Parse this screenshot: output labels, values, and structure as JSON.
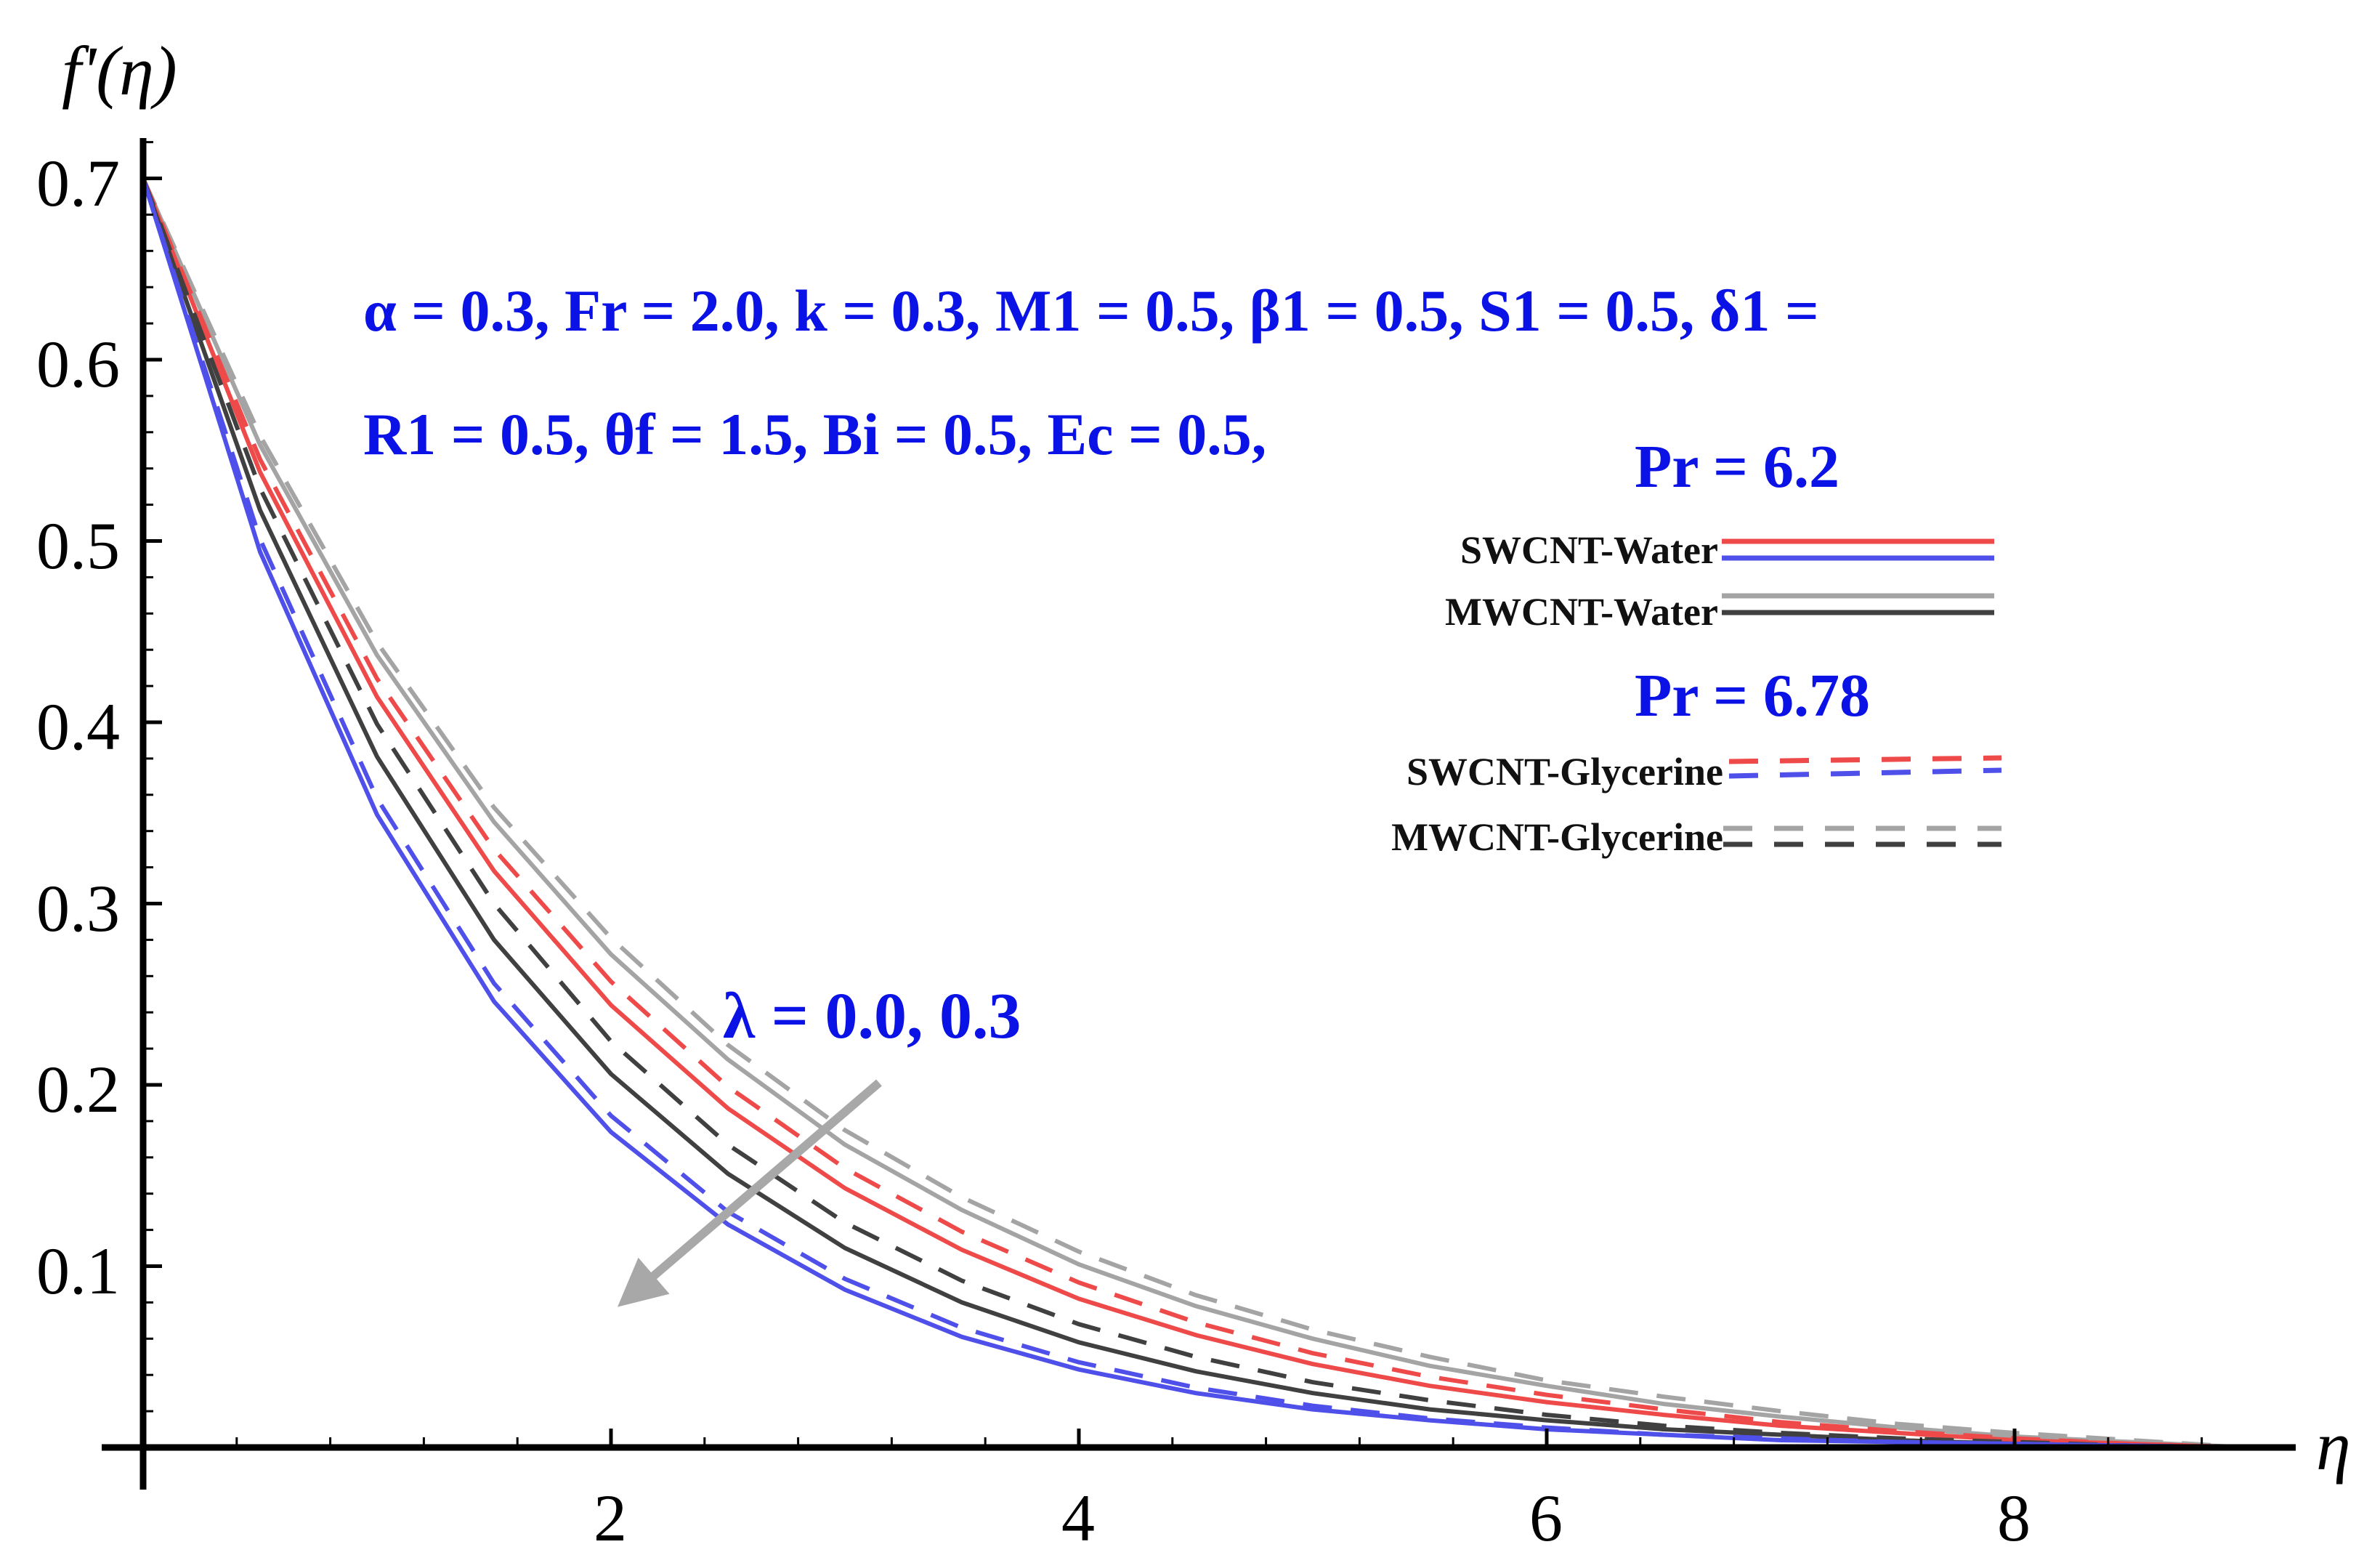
{
  "chart_data": {
    "type": "line",
    "title": "",
    "xlabel": "η",
    "ylabel": "f'(η)",
    "xlim": [
      0,
      9
    ],
    "ylim": [
      0,
      0.72
    ],
    "x_ticks": [
      "2",
      "4",
      "6",
      "8"
    ],
    "y_ticks": [
      "0.1",
      "0.2",
      "0.3",
      "0.4",
      "0.5",
      "0.6",
      "0.7"
    ],
    "parameter_text": [
      "α = 0.3, Fr = 2.0, k = 0.3, M1 = 0.5, β1 = 0.5, S1 = 0.5, δ1 =",
      "R1 = 0.5, θf = 1.5, Bi = 0.5, Ec = 0.5,"
    ],
    "legend_groups": [
      {
        "heading": "Pr = 6.2",
        "entries": [
          {
            "label": "SWCNT-Water",
            "colors": [
              "#ef4a4a",
              "#4f4fea"
            ],
            "dash": "solid"
          },
          {
            "label": "MWCNT-Water",
            "colors": [
              "#a4a4a4",
              "#404040"
            ],
            "dash": "solid"
          }
        ]
      },
      {
        "heading": "Pr = 6.78",
        "entries": [
          {
            "label": "SWCNT-Glycerine",
            "colors": [
              "#ef4a4a",
              "#4f4fea"
            ],
            "dash": "dashed"
          },
          {
            "label": "MWCNT-Glycerine",
            "colors": [
              "#a4a4a4",
              "#404040"
            ],
            "dash": "dashed"
          }
        ]
      }
    ],
    "annotation": "λ =  0.0, 0.3",
    "series": [
      {
        "name": "MWCNT-Glycerine (λ = 0.0)",
        "color": "#a4a4a4",
        "dash": "dashed",
        "x": [
          0,
          0.5,
          1,
          1.5,
          2,
          2.5,
          3,
          3.5,
          4,
          4.5,
          5,
          5.5,
          6,
          6.5,
          7,
          7.5,
          8,
          8.5,
          9
        ],
        "values": [
          0.7,
          0.558,
          0.444,
          0.353,
          0.281,
          0.222,
          0.175,
          0.138,
          0.108,
          0.084,
          0.065,
          0.05,
          0.037,
          0.028,
          0.02,
          0.013,
          0.008,
          0.004,
          0.0
        ]
      },
      {
        "name": "MWCNT-Water (λ = 0.0)",
        "color": "#a4a4a4",
        "dash": "solid",
        "x": [
          0,
          0.5,
          1,
          1.5,
          2,
          2.5,
          3,
          3.5,
          4,
          4.5,
          5,
          5.5,
          6,
          6.5,
          7,
          7.5,
          8,
          8.5,
          9
        ],
        "values": [
          0.7,
          0.553,
          0.437,
          0.345,
          0.272,
          0.214,
          0.167,
          0.131,
          0.101,
          0.078,
          0.06,
          0.045,
          0.034,
          0.024,
          0.017,
          0.011,
          0.006,
          0.003,
          0.0
        ]
      },
      {
        "name": "SWCNT-Glycerine (λ = 0.0)",
        "color": "#ef4a4a",
        "dash": "dashed",
        "x": [
          0,
          0.5,
          1,
          1.5,
          2,
          2.5,
          3,
          3.5,
          4,
          4.5,
          5,
          5.5,
          6,
          6.5,
          7,
          7.5,
          8,
          8.5,
          9
        ],
        "values": [
          0.7,
          0.545,
          0.424,
          0.33,
          0.257,
          0.199,
          0.154,
          0.119,
          0.091,
          0.069,
          0.052,
          0.039,
          0.029,
          0.021,
          0.014,
          0.009,
          0.005,
          0.002,
          0.0
        ]
      },
      {
        "name": "SWCNT-Water (λ = 0.0)",
        "color": "#ef4a4a",
        "dash": "solid",
        "x": [
          0,
          0.5,
          1,
          1.5,
          2,
          2.5,
          3,
          3.5,
          4,
          4.5,
          5,
          5.5,
          6,
          6.5,
          7,
          7.5,
          8,
          8.5,
          9
        ],
        "values": [
          0.7,
          0.538,
          0.414,
          0.318,
          0.244,
          0.187,
          0.143,
          0.109,
          0.082,
          0.062,
          0.046,
          0.034,
          0.025,
          0.018,
          0.012,
          0.008,
          0.004,
          0.002,
          0.0
        ]
      },
      {
        "name": "MWCNT-Glycerine (λ = 0.3)",
        "color": "#404040",
        "dash": "dashed",
        "x": [
          0,
          0.5,
          1,
          1.5,
          2,
          2.5,
          3,
          3.5,
          4,
          4.5,
          5,
          5.5,
          6,
          6.5,
          7,
          7.5,
          8,
          8.5,
          9
        ],
        "values": [
          0.7,
          0.529,
          0.399,
          0.3,
          0.224,
          0.167,
          0.124,
          0.092,
          0.068,
          0.05,
          0.036,
          0.026,
          0.018,
          0.012,
          0.008,
          0.005,
          0.003,
          0.001,
          0.0
        ]
      },
      {
        "name": "MWCNT-Water (λ = 0.3)",
        "color": "#404040",
        "dash": "solid",
        "x": [
          0,
          0.5,
          1,
          1.5,
          2,
          2.5,
          3,
          3.5,
          4,
          4.5,
          5,
          5.5,
          6,
          6.5,
          7,
          7.5,
          8,
          8.5,
          9
        ],
        "values": [
          0.7,
          0.517,
          0.381,
          0.28,
          0.206,
          0.151,
          0.11,
          0.08,
          0.058,
          0.042,
          0.03,
          0.021,
          0.015,
          0.01,
          0.007,
          0.004,
          0.002,
          0.001,
          0.0
        ]
      },
      {
        "name": "SWCNT-Glycerine (λ = 0.3)",
        "color": "#4f4fea",
        "dash": "dashed",
        "x": [
          0,
          0.5,
          1,
          1.5,
          2,
          2.5,
          3,
          3.5,
          4,
          4.5,
          5,
          5.5,
          6,
          6.5,
          7,
          7.5,
          8,
          8.5,
          9
        ],
        "values": [
          0.7,
          0.501,
          0.358,
          0.256,
          0.183,
          0.13,
          0.093,
          0.066,
          0.047,
          0.033,
          0.023,
          0.016,
          0.011,
          0.007,
          0.005,
          0.003,
          0.002,
          0.001,
          0.0
        ]
      },
      {
        "name": "SWCNT-Water (λ = 0.3)",
        "color": "#4f4fea",
        "dash": "solid",
        "x": [
          0,
          0.5,
          1,
          1.5,
          2,
          2.5,
          3,
          3.5,
          4,
          4.5,
          5,
          5.5,
          6,
          6.5,
          7,
          7.5,
          8,
          8.5,
          9
        ],
        "values": [
          0.7,
          0.494,
          0.349,
          0.246,
          0.174,
          0.123,
          0.087,
          0.061,
          0.043,
          0.03,
          0.021,
          0.015,
          0.01,
          0.007,
          0.004,
          0.003,
          0.002,
          0.001,
          0.0
        ]
      }
    ]
  }
}
